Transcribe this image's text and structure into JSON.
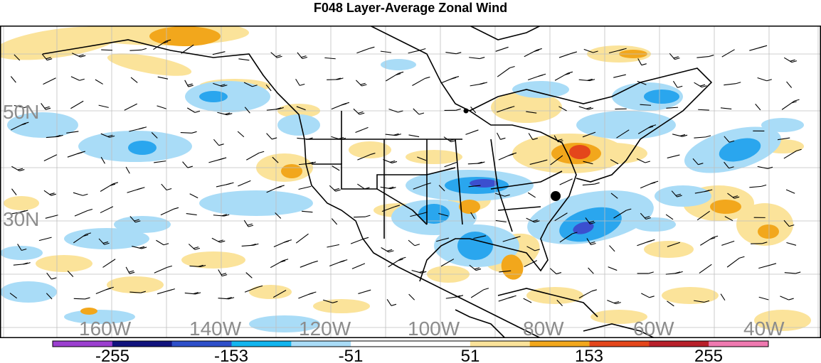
{
  "title": "F048 Layer-Average Zonal Wind",
  "lat_labels": [
    "50N",
    "30N"
  ],
  "lon_labels": [
    "160W",
    "140W",
    "120W",
    "100W",
    "80W",
    "60W",
    "40W"
  ],
  "colorbar": {
    "labels": [
      "-255",
      "-153",
      "-51",
      "51",
      "153",
      "255"
    ],
    "colors": [
      "#9b3fcf",
      "#11137d",
      "#2e4fc9",
      "#12b5ef",
      "#a9dcf7",
      "#ffffff",
      "#ffffff",
      "#fbe39a",
      "#f2a71c",
      "#e4461b",
      "#b8202a",
      "#ef79b0"
    ]
  },
  "palette": {
    "light_blue": "#a9dcf7",
    "medium_blue": "#2aa6ee",
    "dark_blue": "#3b4fcf",
    "light_yellow": "#fbe39a",
    "orange": "#f2a71c",
    "red": "#e4461b",
    "label_gray": "#8c8c8c"
  }
}
